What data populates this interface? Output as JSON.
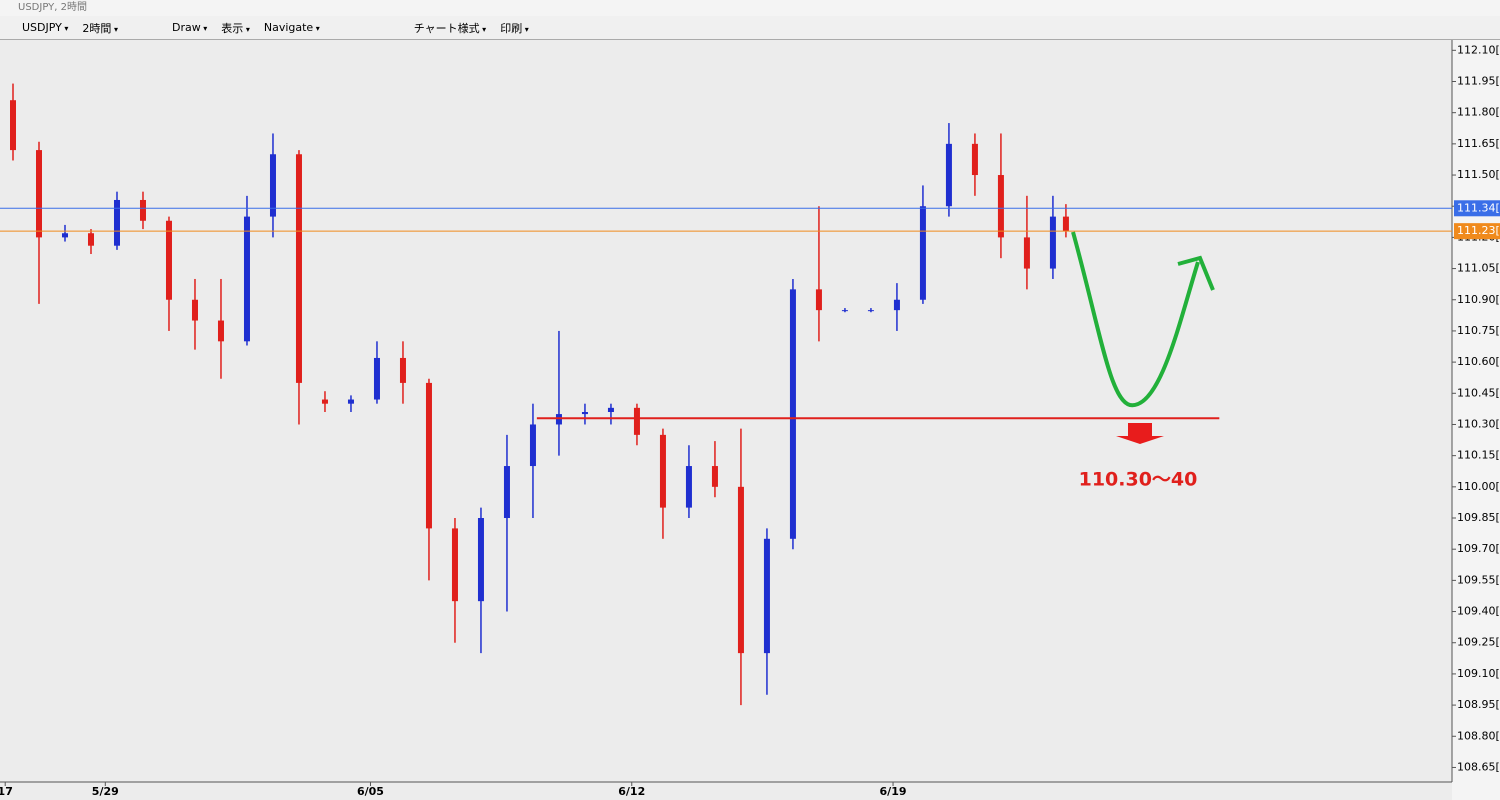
{
  "window": {
    "title": "USDJPY, 2時間"
  },
  "toolbar": {
    "items": [
      "USDJPY",
      "2時間",
      "Draw",
      "表示",
      "Navigate",
      "チャート様式",
      "印刷"
    ]
  },
  "chart_data": {
    "type": "candlestick",
    "up_color": "#1f2fd0",
    "down_color": "#e0201c",
    "xlim": [
      0,
      111.7
    ],
    "ylim": [
      108.58,
      112.14
    ],
    "xticks": [
      {
        "value": 0.4,
        "label": "17"
      },
      {
        "value": 8.1,
        "label": "5/29"
      },
      {
        "value": 28.5,
        "label": "6/05"
      },
      {
        "value": 48.6,
        "label": "6/12"
      },
      {
        "value": 68.7,
        "label": "6/19"
      }
    ],
    "yticks": [
      {
        "value": 112.1,
        "label": "112.10[0]"
      },
      {
        "value": 111.95,
        "label": "111.95[0]"
      },
      {
        "value": 111.8,
        "label": "111.80[0]"
      },
      {
        "value": 111.65,
        "label": "111.65[0]"
      },
      {
        "value": 111.5,
        "label": "111.50[0]"
      },
      {
        "value": 111.35,
        "label": "111.35[0]"
      },
      {
        "value": 111.2,
        "label": "111.20[0]"
      },
      {
        "value": 111.05,
        "label": "111.05[0]"
      },
      {
        "value": 110.9,
        "label": "110.90[0]"
      },
      {
        "value": 110.75,
        "label": "110.75[0]"
      },
      {
        "value": 110.6,
        "label": "110.60[0]"
      },
      {
        "value": 110.45,
        "label": "110.45[0]"
      },
      {
        "value": 110.3,
        "label": "110.30[0]"
      },
      {
        "value": 110.15,
        "label": "110.15[0]"
      },
      {
        "value": 110.0,
        "label": "110.00[0]"
      },
      {
        "value": 109.85,
        "label": "109.85[0]"
      },
      {
        "value": 109.7,
        "label": "109.70[0]"
      },
      {
        "value": 109.55,
        "label": "109.55[0]"
      },
      {
        "value": 109.4,
        "label": "109.40[0]"
      },
      {
        "value": 109.25,
        "label": "109.25[0]"
      },
      {
        "value": 109.1,
        "label": "109.10[0]"
      },
      {
        "value": 108.95,
        "label": "108.95[0]"
      },
      {
        "value": 108.8,
        "label": "108.80[0]"
      },
      {
        "value": 108.65,
        "label": "108.65[0]"
      }
    ],
    "x": [
      1,
      3,
      5,
      7,
      9,
      11,
      13,
      15,
      17,
      19,
      21,
      23,
      25,
      27,
      29,
      31,
      33,
      35,
      37,
      39,
      41,
      43,
      45,
      47,
      49,
      51,
      53,
      55,
      57,
      59,
      61,
      63,
      65,
      67,
      69,
      71,
      73,
      75,
      77,
      79,
      81,
      82
    ],
    "open": [
      111.86,
      111.62,
      111.2,
      111.22,
      111.16,
      111.38,
      111.28,
      110.9,
      110.8,
      110.7,
      111.3,
      111.6,
      110.42,
      110.4,
      110.42,
      110.62,
      110.5,
      109.8,
      109.45,
      109.85,
      110.1,
      110.3,
      110.35,
      110.36,
      110.38,
      110.25,
      109.9,
      110.1,
      110.0,
      109.2,
      109.75,
      110.95,
      110.85,
      110.85,
      110.85,
      110.9,
      111.35,
      111.65,
      111.5,
      111.2,
      111.05,
      111.3
    ],
    "high": [
      111.94,
      111.66,
      111.26,
      111.24,
      111.42,
      111.42,
      111.3,
      111.0,
      111.0,
      111.4,
      111.7,
      111.62,
      110.46,
      110.44,
      110.7,
      110.7,
      110.52,
      109.85,
      109.9,
      110.25,
      110.4,
      110.75,
      110.4,
      110.4,
      110.4,
      110.28,
      110.2,
      110.22,
      110.28,
      109.8,
      111.0,
      111.35,
      110.86,
      110.86,
      110.98,
      111.45,
      111.75,
      111.7,
      111.7,
      111.4,
      111.4,
      111.36
    ],
    "low": [
      111.57,
      110.88,
      111.18,
      111.12,
      111.14,
      111.24,
      110.75,
      110.66,
      110.52,
      110.68,
      111.2,
      110.3,
      110.36,
      110.36,
      110.4,
      110.4,
      109.55,
      109.25,
      109.2,
      109.4,
      109.85,
      110.15,
      110.3,
      110.3,
      110.2,
      109.75,
      109.85,
      109.95,
      108.95,
      109.0,
      109.7,
      110.7,
      110.84,
      110.84,
      110.75,
      110.88,
      111.3,
      111.4,
      111.1,
      110.95,
      111.0,
      111.2
    ],
    "close": [
      111.62,
      111.2,
      111.22,
      111.16,
      111.38,
      111.28,
      110.9,
      110.8,
      110.7,
      111.3,
      111.6,
      110.5,
      110.4,
      110.42,
      110.62,
      110.5,
      109.8,
      109.45,
      109.85,
      110.1,
      110.3,
      110.35,
      110.36,
      110.38,
      110.25,
      109.9,
      110.1,
      110.0,
      109.2,
      109.75,
      110.95,
      110.85,
      110.85,
      110.85,
      110.9,
      111.35,
      111.65,
      111.5,
      111.2,
      111.05,
      111.3,
      111.23
    ],
    "price_lines": [
      {
        "value": 111.34,
        "label": "111.34[",
        "color": "#3a6ee8"
      },
      {
        "value": 111.23,
        "label": "111.23[",
        "color": "#f08a1c"
      }
    ],
    "support": {
      "value": 110.33,
      "from_x": 41.3,
      "to_x": 93.8,
      "color": "#e0201c"
    },
    "annotation": "110.30～40"
  }
}
